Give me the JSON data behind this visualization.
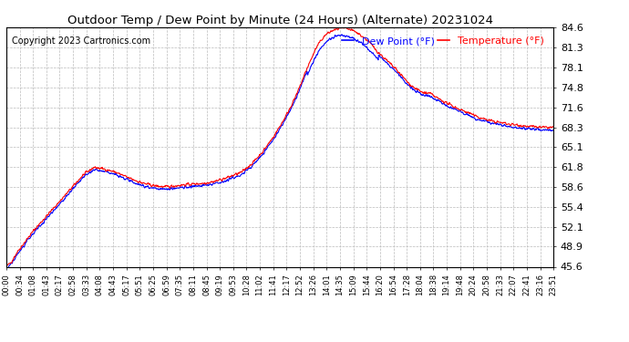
{
  "title": "Outdoor Temp / Dew Point by Minute (24 Hours) (Alternate) 20231024",
  "copyright": "Copyright 2023 Cartronics.com",
  "legend_dew": "Dew Point (°F)",
  "legend_temp": "Temperature (°F)",
  "dew_color": "#0000ff",
  "temp_color": "#ff0000",
  "bg_color": "#ffffff",
  "plot_bg_color": "#ffffff",
  "grid_color": "#bbbbbb",
  "ylim_min": 45.6,
  "ylim_max": 84.6,
  "yticks": [
    45.6,
    48.9,
    52.1,
    55.4,
    58.6,
    61.8,
    65.1,
    68.3,
    71.6,
    74.8,
    78.1,
    81.3,
    84.6
  ],
  "xtick_labels": [
    "00:00",
    "00:34",
    "01:08",
    "01:43",
    "02:17",
    "02:58",
    "03:33",
    "04:08",
    "04:43",
    "05:17",
    "05:51",
    "06:25",
    "06:59",
    "07:35",
    "08:11",
    "08:45",
    "09:19",
    "09:53",
    "10:28",
    "11:02",
    "11:41",
    "12:17",
    "12:52",
    "13:26",
    "14:01",
    "14:35",
    "15:09",
    "15:44",
    "16:20",
    "16:54",
    "17:28",
    "18:04",
    "18:38",
    "19:14",
    "19:48",
    "20:24",
    "20:58",
    "21:33",
    "22:07",
    "22:41",
    "23:16",
    "23:51"
  ],
  "num_points": 1440,
  "curve_keypoints": [
    [
      0.0,
      45.6
    ],
    [
      0.01,
      46.5
    ],
    [
      0.02,
      48.0
    ],
    [
      0.05,
      51.5
    ],
    [
      0.1,
      56.5
    ],
    [
      0.14,
      60.5
    ],
    [
      0.16,
      61.8
    ],
    [
      0.18,
      61.5
    ],
    [
      0.2,
      61.0
    ],
    [
      0.22,
      60.2
    ],
    [
      0.25,
      59.2
    ],
    [
      0.27,
      58.8
    ],
    [
      0.29,
      58.6
    ],
    [
      0.31,
      58.8
    ],
    [
      0.33,
      59.0
    ],
    [
      0.36,
      59.2
    ],
    [
      0.38,
      59.5
    ],
    [
      0.4,
      60.0
    ],
    [
      0.415,
      60.5
    ],
    [
      0.43,
      61.0
    ],
    [
      0.45,
      62.5
    ],
    [
      0.47,
      64.5
    ],
    [
      0.49,
      67.0
    ],
    [
      0.51,
      70.0
    ],
    [
      0.53,
      73.5
    ],
    [
      0.55,
      78.0
    ],
    [
      0.565,
      81.0
    ],
    [
      0.575,
      82.5
    ],
    [
      0.585,
      83.5
    ],
    [
      0.595,
      84.0
    ],
    [
      0.61,
      84.5
    ],
    [
      0.625,
      84.3
    ],
    [
      0.635,
      84.0
    ],
    [
      0.645,
      83.5
    ],
    [
      0.66,
      82.5
    ],
    [
      0.68,
      80.5
    ],
    [
      0.7,
      78.8
    ],
    [
      0.715,
      77.5
    ],
    [
      0.725,
      76.5
    ],
    [
      0.735,
      75.5
    ],
    [
      0.745,
      74.8
    ],
    [
      0.76,
      74.0
    ],
    [
      0.775,
      73.8
    ],
    [
      0.785,
      73.2
    ],
    [
      0.8,
      72.5
    ],
    [
      0.815,
      71.8
    ],
    [
      0.83,
      71.2
    ],
    [
      0.85,
      70.5
    ],
    [
      0.86,
      70.0
    ],
    [
      0.87,
      69.8
    ],
    [
      0.88,
      69.5
    ],
    [
      0.895,
      69.2
    ],
    [
      0.91,
      69.0
    ],
    [
      0.92,
      68.8
    ],
    [
      0.935,
      68.7
    ],
    [
      0.95,
      68.5
    ],
    [
      0.965,
      68.4
    ],
    [
      0.98,
      68.3
    ],
    [
      1.0,
      68.3
    ]
  ]
}
